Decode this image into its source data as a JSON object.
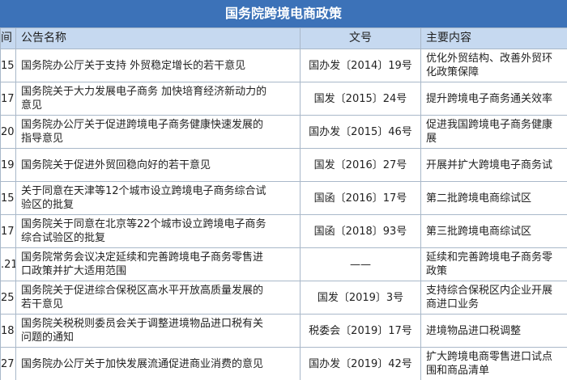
{
  "title": "国务院跨境电商政策",
  "table": {
    "header": [
      "间",
      "公告名称",
      "文号",
      "主要内容"
    ],
    "rows": [
      {
        "date": "15",
        "name": [
          "国务院办公厅关于支持 外贸稳定增长的若干意见"
        ],
        "number": "国办发〔2014〕19号",
        "content": [
          "优化外贸结构、改善外贸环",
          "化政策保障"
        ]
      },
      {
        "date": "17",
        "name": [
          "国务院关于大力发展电子商务 加快培育经济新动力的",
          "意见"
        ],
        "number": "国发〔2015〕24号",
        "content": [
          "提升跨境电子商务通关效率"
        ]
      },
      {
        "date": "20",
        "name": [
          "国务院办公厅关于促进跨境电子商务健康快速发展的",
          "指导意见"
        ],
        "number": "国办发〔2015〕46号",
        "content": [
          "促进我国跨境电子商务健康",
          "展"
        ]
      },
      {
        "date": "19",
        "name": [
          "国务院关于促进外贸回稳向好的若干意见"
        ],
        "number": "国发〔2016〕27号",
        "content": [
          "开展并扩大跨境电子商务试"
        ]
      },
      {
        "date": "15",
        "name": [
          "关于同意在天津等12个城市设立跨境电子商务综合试",
          "验区的批复"
        ],
        "number": "国函〔2016〕17号",
        "content": [
          "第二批跨境电商综试区"
        ]
      },
      {
        "date": "17",
        "name": [
          "国务院关于同意在北京等22个城市设立跨境电子商务",
          "综合试验区的批复"
        ],
        "number": "国函〔2018〕93号",
        "content": [
          "第三批跨境电商综试区"
        ]
      },
      {
        "date": ".21",
        "name": [
          "国务院常务会议决定延续和完善跨境电子商务零售进",
          "口政策并扩大适用范围"
        ],
        "number": "——",
        "content": [
          "延续和完善跨境电子商务零",
          "政策"
        ]
      },
      {
        "date": "25",
        "name": [
          "国务院关于促进综合保税区高水平开放高质量发展的",
          "若干意见"
        ],
        "number": "国发〔2019〕3号",
        "content": [
          "支持综合保税区内企业开展",
          "商进口业务"
        ]
      },
      {
        "date": "18",
        "name": [
          "国务院关税税则委员会关于调整进境物品进口税有关",
          "问题的通知"
        ],
        "number": "税委会〔2019〕17号",
        "content": [
          "进境物品进口税调整"
        ]
      },
      {
        "date": "27",
        "name": [
          "国务院办公厅关于加快发展流通促进商业消费的意见"
        ],
        "number": "国办发〔2019〕42号",
        "content": [
          "扩大跨境电商零售进口试点",
          "围和商品清单"
        ]
      }
    ]
  }
}
